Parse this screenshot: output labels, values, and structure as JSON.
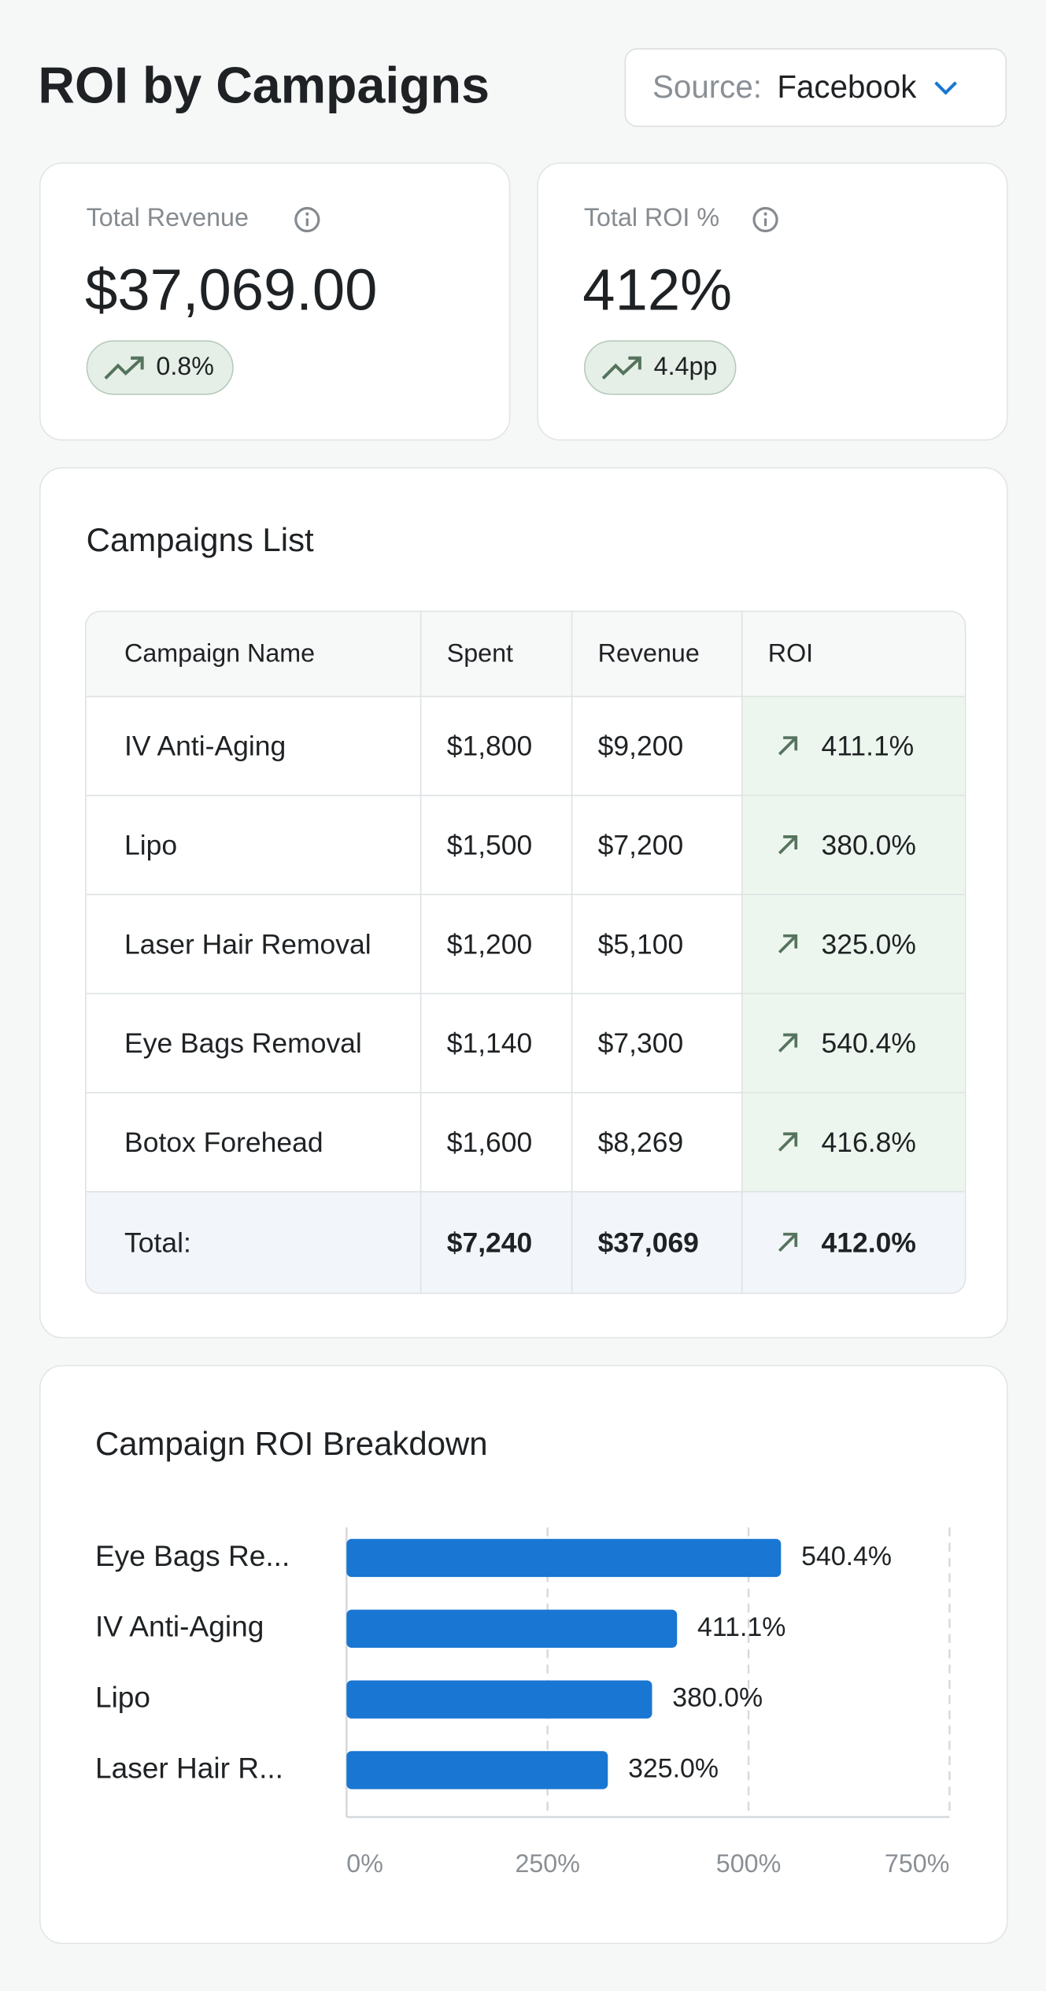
{
  "header": {
    "title": "ROI by Campaigns",
    "source_label": "Source:",
    "source_value": "Facebook"
  },
  "kpis": [
    {
      "label": "Total Revenue",
      "value": "$37,069.00",
      "change": "0.8%"
    },
    {
      "label": "Total ROI %",
      "value": "412%",
      "change": "4.4pp"
    }
  ],
  "table": {
    "title": "Campaigns List",
    "columns": [
      "Campaign Name",
      "Spent",
      "Revenue",
      "ROI"
    ],
    "rows": [
      [
        "IV Anti-Aging",
        "$1,800",
        "$9,200",
        "411.1%"
      ],
      [
        "Lipo",
        "$1,500",
        "$7,200",
        "380.0%"
      ],
      [
        "Laser Hair Removal",
        "$1,200",
        "$5,100",
        "325.0%"
      ],
      [
        "Eye Bags Removal",
        "$1,140",
        "$7,300",
        "540.4%"
      ],
      [
        "Botox Forehead",
        "$1,600",
        "$8,269",
        "416.8%"
      ]
    ],
    "total": [
      "Total:",
      "$7,240",
      "$37,069",
      "412.0%"
    ]
  },
  "chart_data": {
    "type": "bar",
    "orientation": "horizontal",
    "title": "Campaign ROI Breakdown",
    "categories": [
      "Eye Bags Re...",
      "IV Anti-Aging",
      "Lipo",
      "Laser Hair R..."
    ],
    "values": [
      540.4,
      411.1,
      380.0,
      325.0
    ],
    "value_labels": [
      "540.4%",
      "411.1%",
      "380.0%",
      "325.0%"
    ],
    "color": "#1976d2",
    "xlim": [
      0,
      750
    ],
    "xticks": [
      {
        "value": 0,
        "label": "0%"
      },
      {
        "value": 250,
        "label": "250%"
      },
      {
        "value": 500,
        "label": "500%"
      },
      {
        "value": 750,
        "label": "750%"
      }
    ],
    "grid": true
  }
}
